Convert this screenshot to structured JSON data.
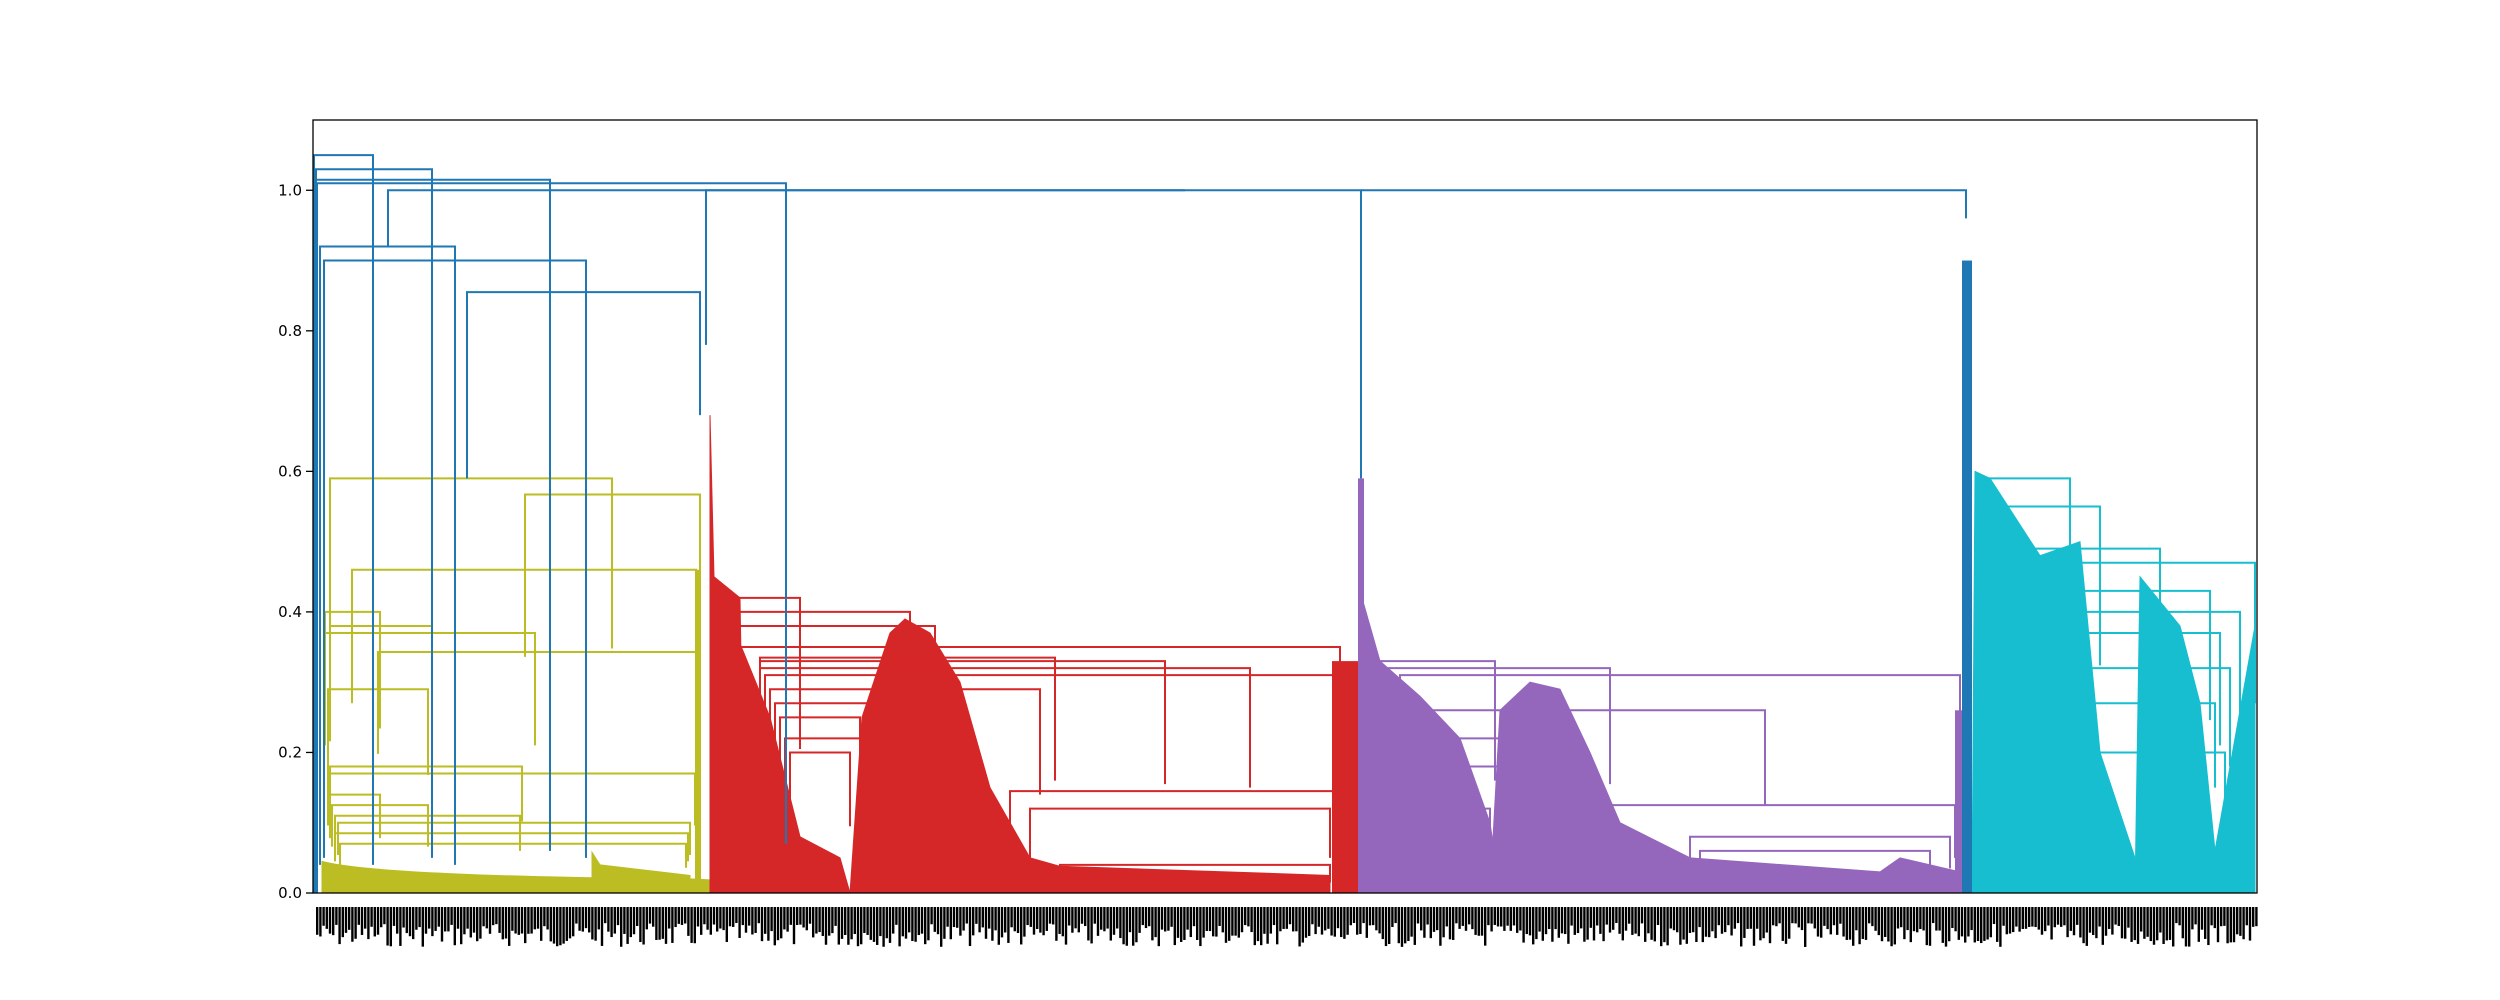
{
  "chart_data": {
    "type": "dendrogram",
    "title": "",
    "xlabel": "",
    "ylabel": "",
    "ylim": [
      0,
      1.1
    ],
    "yticks": [
      0.0,
      0.2,
      0.4,
      0.6,
      0.8,
      1.0
    ],
    "ytick_labels": [
      "0.0",
      "0.2",
      "0.4",
      "0.6",
      "0.8",
      "1.0"
    ],
    "leaf_labels": "dense unreadable leaf index labels",
    "link_color_default": "#1f77b4",
    "clusters": [
      {
        "color": "#bcbd22",
        "root_height": 0.59
      },
      {
        "color": "#d62728",
        "root_height": 0.68
      },
      {
        "color": "#9467bd",
        "root_height": 0.59
      },
      {
        "color": "#17becf",
        "root_height": 0.6
      }
    ],
    "top_merge_heights": [
      1.05,
      1.03,
      1.015,
      1.0,
      1.0,
      1.0,
      0.92,
      0.9,
      0.855
    ]
  }
}
